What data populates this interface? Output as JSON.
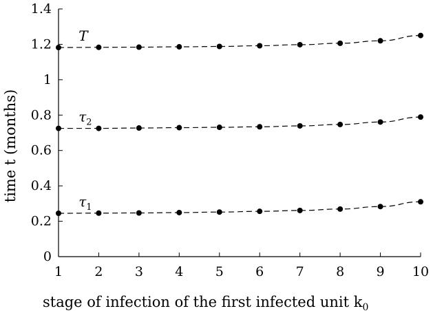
{
  "chart_data": {
    "type": "line",
    "title": "",
    "xlabel": "stage of infection of the first infected unit k",
    "xlabel_sub": "0",
    "ylabel": "time t (months)",
    "xlim": [
      1,
      10
    ],
    "ylim": [
      0,
      1.4
    ],
    "xticks": [
      1,
      2,
      3,
      4,
      5,
      6,
      7,
      8,
      9,
      10
    ],
    "yticks": [
      0,
      0.2,
      0.4,
      0.6,
      0.8,
      1,
      1.2,
      1.4
    ],
    "grid": false,
    "x": [
      1,
      2,
      3,
      4,
      5,
      6,
      7,
      8,
      9,
      10
    ],
    "series": [
      {
        "name": "T",
        "label_main": "T",
        "label_sub": "",
        "values": [
          1.182,
          1.183,
          1.184,
          1.186,
          1.188,
          1.192,
          1.198,
          1.206,
          1.22,
          1.25
        ]
      },
      {
        "name": "τ2",
        "label_main": "τ",
        "label_sub": "2",
        "values": [
          0.725,
          0.725,
          0.727,
          0.729,
          0.731,
          0.734,
          0.739,
          0.747,
          0.761,
          0.789
        ]
      },
      {
        "name": "τ1",
        "label_main": "τ",
        "label_sub": "1",
        "values": [
          0.245,
          0.246,
          0.247,
          0.249,
          0.252,
          0.256,
          0.261,
          0.269,
          0.283,
          0.31
        ]
      }
    ],
    "line_style": "dashed",
    "marker": "filled-circle",
    "color": "#000000"
  }
}
